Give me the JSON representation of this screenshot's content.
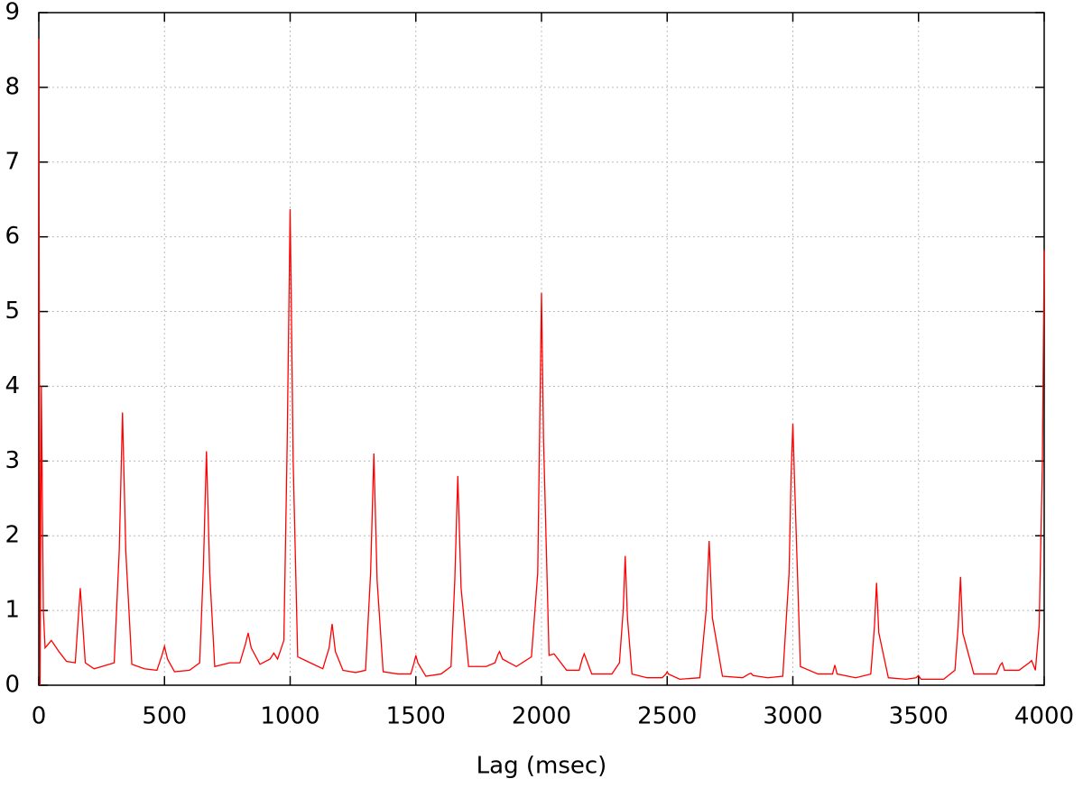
{
  "chart_data": {
    "type": "line",
    "x_label": "Lag (msec)",
    "x": [
      0,
      5,
      10,
      18,
      25,
      50,
      80,
      110,
      145,
      165,
      185,
      220,
      260,
      300,
      320,
      333,
      346,
      370,
      420,
      470,
      490,
      500,
      512,
      540,
      600,
      640,
      655,
      667,
      680,
      700,
      760,
      800,
      822,
      833,
      845,
      880,
      920,
      935,
      950,
      975,
      988,
      1000,
      1012,
      1030,
      1080,
      1130,
      1155,
      1167,
      1180,
      1210,
      1260,
      1300,
      1320,
      1333,
      1346,
      1370,
      1430,
      1480,
      1493,
      1500,
      1508,
      1540,
      1600,
      1640,
      1655,
      1667,
      1680,
      1710,
      1780,
      1815,
      1828,
      1833,
      1845,
      1900,
      1960,
      1985,
      1993,
      2000,
      2008,
      2030,
      2050,
      2100,
      2150,
      2162,
      2170,
      2200,
      2280,
      2310,
      2325,
      2333,
      2342,
      2360,
      2420,
      2480,
      2495,
      2500,
      2505,
      2550,
      2630,
      2655,
      2667,
      2680,
      2720,
      2800,
      2825,
      2833,
      2842,
      2900,
      2960,
      2985,
      2993,
      3000,
      3008,
      3030,
      3100,
      3158,
      3167,
      3176,
      3250,
      3310,
      3325,
      3333,
      3342,
      3380,
      3450,
      3490,
      3500,
      3510,
      3600,
      3645,
      3658,
      3667,
      3676,
      3720,
      3810,
      3825,
      3833,
      3842,
      3900,
      3940,
      3950,
      3965,
      3980,
      3993,
      4000
    ],
    "series": [
      {
        "color": "#ff0000",
        "values": [
          8.65,
          0,
          4,
          1.0,
          0.5,
          0.6,
          0.45,
          0.32,
          0.3,
          1.3,
          0.3,
          0.22,
          0.26,
          0.3,
          1.8,
          3.65,
          1.8,
          0.28,
          0.22,
          0.2,
          0.4,
          0.52,
          0.35,
          0.18,
          0.2,
          0.3,
          1.6,
          3.13,
          1.5,
          0.25,
          0.3,
          0.3,
          0.55,
          0.7,
          0.5,
          0.28,
          0.35,
          0.43,
          0.35,
          0.6,
          3.2,
          6.37,
          3.0,
          0.38,
          0.3,
          0.22,
          0.5,
          0.82,
          0.45,
          0.2,
          0.17,
          0.2,
          1.5,
          3.1,
          1.4,
          0.18,
          0.15,
          0.15,
          0.3,
          0.4,
          0.3,
          0.12,
          0.15,
          0.25,
          1.4,
          2.8,
          1.3,
          0.25,
          0.25,
          0.3,
          0.42,
          0.45,
          0.35,
          0.25,
          0.38,
          1.5,
          3.5,
          5.25,
          3.3,
          0.4,
          0.42,
          0.2,
          0.2,
          0.35,
          0.42,
          0.15,
          0.15,
          0.3,
          1.0,
          1.73,
          0.9,
          0.15,
          0.1,
          0.1,
          0.15,
          0.18,
          0.15,
          0.08,
          0.1,
          1.0,
          1.93,
          0.9,
          0.12,
          0.1,
          0.15,
          0.16,
          0.13,
          0.1,
          0.12,
          1.5,
          2.8,
          3.5,
          2.6,
          0.25,
          0.15,
          0.15,
          0.27,
          0.15,
          0.1,
          0.15,
          0.8,
          1.37,
          0.7,
          0.1,
          0.08,
          0.1,
          0.13,
          0.08,
          0.08,
          0.2,
          0.8,
          1.45,
          0.7,
          0.15,
          0.15,
          0.27,
          0.3,
          0.2,
          0.2,
          0.3,
          0.33,
          0.2,
          0.8,
          3.0,
          5.82
        ]
      }
    ],
    "xlim": [
      0,
      4000
    ],
    "ylim": [
      0,
      9
    ],
    "xticks": [
      0,
      500,
      1000,
      1500,
      2000,
      2500,
      3000,
      3500,
      4000
    ],
    "yticks": [
      0,
      1,
      2,
      3,
      4,
      5,
      6,
      7,
      8,
      9
    ],
    "grid": true
  }
}
